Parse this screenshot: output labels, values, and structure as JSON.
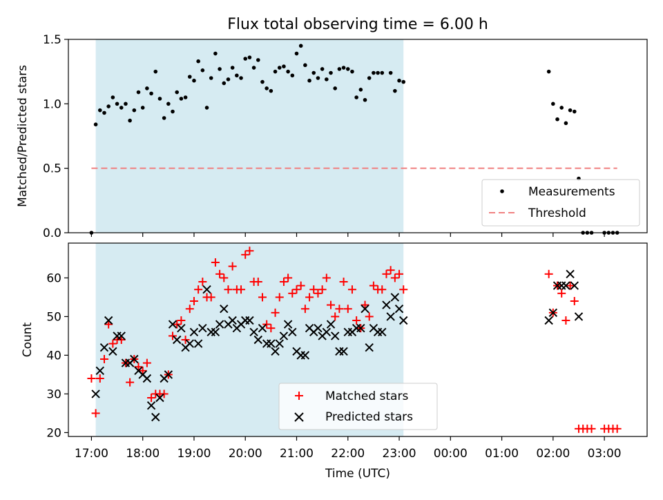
{
  "chart_data": [
    {
      "type": "scatter",
      "title": "Flux total observing time = 6.00 h",
      "ylabel": "Matched/Predicted stars",
      "ylim": [
        0.0,
        1.5
      ],
      "yticks": [
        "0.0",
        "0.5",
        "1.0",
        "1.5"
      ],
      "x_range": [
        "16:33",
        "03:50"
      ],
      "shaded_span": [
        "17:05",
        "23:05"
      ],
      "legend": {
        "placement": "lower-right",
        "entries": [
          "Measurements",
          "Threshold"
        ]
      },
      "threshold": {
        "name": "Threshold",
        "y": 0.5,
        "x_start": "17:00",
        "x_end": "03:15",
        "color": "#f08080"
      },
      "series": [
        {
          "name": "Measurements",
          "color": "#000000",
          "points": [
            [
              "17:00",
              0.0
            ],
            [
              "17:05",
              0.84
            ],
            [
              "17:10",
              0.95
            ],
            [
              "17:15",
              0.93
            ],
            [
              "17:20",
              0.98
            ],
            [
              "17:25",
              1.05
            ],
            [
              "17:30",
              1.0
            ],
            [
              "17:35",
              0.97
            ],
            [
              "17:40",
              1.0
            ],
            [
              "17:45",
              0.87
            ],
            [
              "17:50",
              0.95
            ],
            [
              "17:55",
              1.09
            ],
            [
              "18:00",
              0.97
            ],
            [
              "18:05",
              1.12
            ],
            [
              "18:10",
              1.08
            ],
            [
              "18:15",
              1.25
            ],
            [
              "18:20",
              1.04
            ],
            [
              "18:25",
              0.89
            ],
            [
              "18:30",
              1.0
            ],
            [
              "18:35",
              0.94
            ],
            [
              "18:40",
              1.09
            ],
            [
              "18:45",
              1.04
            ],
            [
              "18:50",
              1.05
            ],
            [
              "18:55",
              1.21
            ],
            [
              "19:00",
              1.18
            ],
            [
              "19:05",
              1.33
            ],
            [
              "19:10",
              1.26
            ],
            [
              "19:15",
              0.97
            ],
            [
              "19:20",
              1.2
            ],
            [
              "19:25",
              1.39
            ],
            [
              "19:30",
              1.27
            ],
            [
              "19:35",
              1.16
            ],
            [
              "19:40",
              1.19
            ],
            [
              "19:45",
              1.28
            ],
            [
              "19:50",
              1.22
            ],
            [
              "19:55",
              1.2
            ],
            [
              "20:00",
              1.35
            ],
            [
              "20:05",
              1.36
            ],
            [
              "20:10",
              1.28
            ],
            [
              "20:15",
              1.34
            ],
            [
              "20:20",
              1.17
            ],
            [
              "20:25",
              1.12
            ],
            [
              "20:30",
              1.1
            ],
            [
              "20:35",
              1.25
            ],
            [
              "20:40",
              1.28
            ],
            [
              "20:45",
              1.29
            ],
            [
              "20:50",
              1.25
            ],
            [
              "20:55",
              1.22
            ],
            [
              "21:00",
              1.39
            ],
            [
              "21:05",
              1.45
            ],
            [
              "21:10",
              1.3
            ],
            [
              "21:15",
              1.18
            ],
            [
              "21:20",
              1.24
            ],
            [
              "21:25",
              1.2
            ],
            [
              "21:30",
              1.27
            ],
            [
              "21:35",
              1.19
            ],
            [
              "21:40",
              1.24
            ],
            [
              "21:45",
              1.12
            ],
            [
              "21:50",
              1.27
            ],
            [
              "21:55",
              1.28
            ],
            [
              "22:00",
              1.27
            ],
            [
              "22:05",
              1.25
            ],
            [
              "22:10",
              1.05
            ],
            [
              "22:15",
              1.11
            ],
            [
              "22:20",
              1.03
            ],
            [
              "22:25",
              1.2
            ],
            [
              "22:30",
              1.24
            ],
            [
              "22:35",
              1.24
            ],
            [
              "22:40",
              1.24
            ],
            [
              "22:50",
              1.24
            ],
            [
              "22:55",
              1.1
            ],
            [
              "23:00",
              1.18
            ],
            [
              "23:05",
              1.17
            ],
            [
              "01:55",
              1.25
            ],
            [
              "02:00",
              1.0
            ],
            [
              "02:05",
              0.88
            ],
            [
              "02:10",
              0.97
            ],
            [
              "02:15",
              0.85
            ],
            [
              "02:20",
              0.95
            ],
            [
              "02:25",
              0.94
            ],
            [
              "02:30",
              0.42
            ],
            [
              "02:35",
              0.0
            ],
            [
              "02:40",
              0.0
            ],
            [
              "02:45",
              0.0
            ],
            [
              "03:00",
              0.0
            ],
            [
              "03:05",
              0.0
            ],
            [
              "03:10",
              0.0
            ],
            [
              "03:15",
              0.0
            ]
          ]
        }
      ]
    },
    {
      "type": "scatter",
      "xlabel": "Time (UTC)",
      "ylabel": "Count",
      "ylim": [
        19,
        69
      ],
      "yticks": [
        "20",
        "30",
        "40",
        "50",
        "60"
      ],
      "xticks": [
        "17:00",
        "18:00",
        "19:00",
        "20:00",
        "21:00",
        "22:00",
        "23:00",
        "00:00",
        "01:00",
        "02:00",
        "03:00"
      ],
      "x_range": [
        "16:33",
        "03:50"
      ],
      "shaded_span": [
        "17:05",
        "23:05"
      ],
      "legend": {
        "placement": "lower-center",
        "entries": [
          "Matched stars",
          "Predicted stars"
        ]
      },
      "series": [
        {
          "name": "Matched stars",
          "marker": "+",
          "color": "#ff0000",
          "points": [
            [
              "17:00",
              34
            ],
            [
              "17:05",
              25
            ],
            [
              "17:10",
              34
            ],
            [
              "17:15",
              39
            ],
            [
              "17:20",
              48
            ],
            [
              "17:25",
              43
            ],
            [
              "17:30",
              44
            ],
            [
              "17:35",
              44
            ],
            [
              "17:40",
              38
            ],
            [
              "17:45",
              33
            ],
            [
              "17:50",
              39
            ],
            [
              "17:55",
              37
            ],
            [
              "18:00",
              36
            ],
            [
              "18:05",
              38
            ],
            [
              "18:10",
              29
            ],
            [
              "18:15",
              30
            ],
            [
              "18:20",
              30
            ],
            [
              "18:25",
              30
            ],
            [
              "18:30",
              35
            ],
            [
              "18:35",
              45
            ],
            [
              "18:40",
              48
            ],
            [
              "18:45",
              49
            ],
            [
              "18:50",
              44
            ],
            [
              "18:55",
              52
            ],
            [
              "19:00",
              54
            ],
            [
              "19:05",
              57
            ],
            [
              "19:10",
              59
            ],
            [
              "19:15",
              55
            ],
            [
              "19:20",
              55
            ],
            [
              "19:25",
              64
            ],
            [
              "19:30",
              61
            ],
            [
              "19:35",
              60
            ],
            [
              "19:40",
              57
            ],
            [
              "19:45",
              63
            ],
            [
              "19:50",
              57
            ],
            [
              "19:55",
              57
            ],
            [
              "20:00",
              66
            ],
            [
              "20:05",
              67
            ],
            [
              "20:10",
              59
            ],
            [
              "20:15",
              59
            ],
            [
              "20:20",
              55
            ],
            [
              "20:25",
              48
            ],
            [
              "20:30",
              47
            ],
            [
              "20:35",
              51
            ],
            [
              "20:40",
              55
            ],
            [
              "20:45",
              59
            ],
            [
              "20:50",
              60
            ],
            [
              "20:55",
              56
            ],
            [
              "21:00",
              57
            ],
            [
              "21:05",
              58
            ],
            [
              "21:10",
              52
            ],
            [
              "21:15",
              55
            ],
            [
              "21:20",
              57
            ],
            [
              "21:25",
              56
            ],
            [
              "21:30",
              57
            ],
            [
              "21:35",
              60
            ],
            [
              "21:40",
              53
            ],
            [
              "21:45",
              50
            ],
            [
              "21:50",
              52
            ],
            [
              "21:55",
              59
            ],
            [
              "22:00",
              52
            ],
            [
              "22:05",
              57
            ],
            [
              "22:10",
              49
            ],
            [
              "22:15",
              47
            ],
            [
              "22:20",
              53
            ],
            [
              "22:25",
              50
            ],
            [
              "22:30",
              58
            ],
            [
              "22:35",
              57
            ],
            [
              "22:40",
              57
            ],
            [
              "22:45",
              61
            ],
            [
              "22:50",
              62
            ],
            [
              "22:55",
              60
            ],
            [
              "23:00",
              61
            ],
            [
              "23:05",
              57
            ],
            [
              "01:55",
              61
            ],
            [
              "02:00",
              51
            ],
            [
              "02:05",
              58
            ],
            [
              "02:10",
              56
            ],
            [
              "02:15",
              49
            ],
            [
              "02:20",
              58
            ],
            [
              "02:25",
              54
            ],
            [
              "02:30",
              21
            ],
            [
              "02:35",
              21
            ],
            [
              "02:40",
              21
            ],
            [
              "02:45",
              21
            ],
            [
              "03:00",
              21
            ],
            [
              "03:05",
              21
            ],
            [
              "03:10",
              21
            ],
            [
              "03:15",
              21
            ]
          ]
        },
        {
          "name": "Predicted stars",
          "marker": "x",
          "color": "#000000",
          "points": [
            [
              "17:05",
              30
            ],
            [
              "17:10",
              36
            ],
            [
              "17:15",
              42
            ],
            [
              "17:20",
              49
            ],
            [
              "17:25",
              41
            ],
            [
              "17:30",
              45
            ],
            [
              "17:35",
              45
            ],
            [
              "17:40",
              38
            ],
            [
              "17:45",
              38
            ],
            [
              "17:50",
              39
            ],
            [
              "17:55",
              36
            ],
            [
              "18:00",
              35
            ],
            [
              "18:05",
              34
            ],
            [
              "18:10",
              27
            ],
            [
              "18:15",
              24
            ],
            [
              "18:20",
              29
            ],
            [
              "18:25",
              34
            ],
            [
              "18:30",
              35
            ],
            [
              "18:35",
              48
            ],
            [
              "18:40",
              44
            ],
            [
              "18:45",
              47
            ],
            [
              "18:50",
              42
            ],
            [
              "18:55",
              43
            ],
            [
              "19:00",
              46
            ],
            [
              "19:05",
              43
            ],
            [
              "19:10",
              47
            ],
            [
              "19:15",
              57
            ],
            [
              "19:20",
              46
            ],
            [
              "19:25",
              46
            ],
            [
              "19:30",
              48
            ],
            [
              "19:35",
              52
            ],
            [
              "19:40",
              48
            ],
            [
              "19:45",
              49
            ],
            [
              "19:50",
              47
            ],
            [
              "19:55",
              48
            ],
            [
              "20:00",
              49
            ],
            [
              "20:05",
              49
            ],
            [
              "20:10",
              46
            ],
            [
              "20:15",
              44
            ],
            [
              "20:20",
              47
            ],
            [
              "20:25",
              43
            ],
            [
              "20:30",
              43
            ],
            [
              "20:35",
              41
            ],
            [
              "20:40",
              43
            ],
            [
              "20:45",
              45
            ],
            [
              "20:50",
              48
            ],
            [
              "20:55",
              46
            ],
            [
              "21:00",
              41
            ],
            [
              "21:05",
              40
            ],
            [
              "21:10",
              40
            ],
            [
              "21:15",
              47
            ],
            [
              "21:20",
              46
            ],
            [
              "21:25",
              47
            ],
            [
              "21:30",
              45
            ],
            [
              "21:35",
              46
            ],
            [
              "21:40",
              48
            ],
            [
              "21:45",
              45
            ],
            [
              "21:50",
              41
            ],
            [
              "21:55",
              41
            ],
            [
              "22:00",
              46
            ],
            [
              "22:05",
              46
            ],
            [
              "22:10",
              47
            ],
            [
              "22:15",
              47
            ],
            [
              "22:20",
              52
            ],
            [
              "22:25",
              42
            ],
            [
              "22:30",
              47
            ],
            [
              "22:35",
              46
            ],
            [
              "22:40",
              46
            ],
            [
              "22:45",
              53
            ],
            [
              "22:50",
              50
            ],
            [
              "22:55",
              55
            ],
            [
              "23:00",
              52
            ],
            [
              "23:05",
              49
            ],
            [
              "01:55",
              49
            ],
            [
              "02:00",
              51
            ],
            [
              "02:05",
              58
            ],
            [
              "02:10",
              58
            ],
            [
              "02:15",
              58
            ],
            [
              "02:20",
              61
            ],
            [
              "02:25",
              58
            ],
            [
              "02:30",
              50
            ]
          ]
        }
      ]
    }
  ]
}
